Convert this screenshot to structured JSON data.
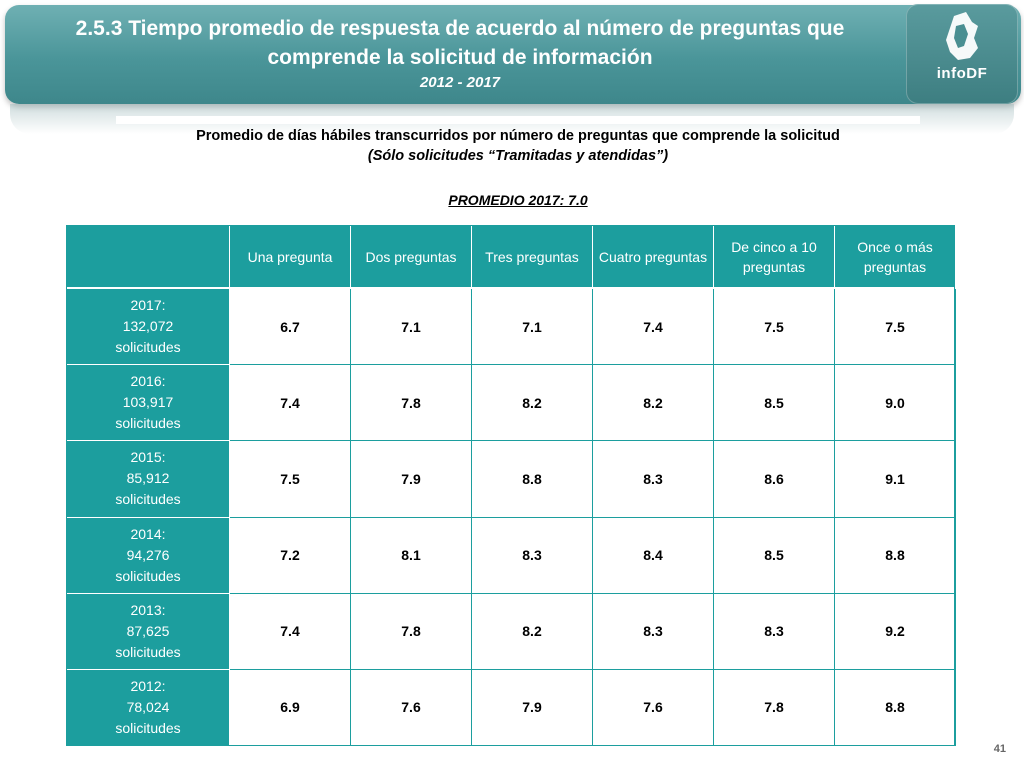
{
  "header": {
    "title": "2.5.3 Tiempo promedio de respuesta de acuerdo al número de preguntas que comprende la solicitud de información",
    "years": "2012 - 2017",
    "logo_text": "infoDF"
  },
  "subtitle": {
    "main": "Promedio de días hábiles transcurridos por número de preguntas que comprende la solicitud",
    "note": "(Sólo solicitudes “Tramitadas y atendidas”)"
  },
  "promedio": "PROMEDIO 2017: 7.0",
  "table": {
    "columns": [
      "",
      "Una pregunta",
      "Dos preguntas",
      "Tres preguntas",
      "Cuatro preguntas",
      "De cinco a 10 preguntas",
      "Once o más preguntas"
    ],
    "rows": [
      {
        "year": "2017:",
        "count": "132,072",
        "unit": "solicitudes",
        "values": [
          "6.7",
          "7.1",
          "7.1",
          "7.4",
          "7.5",
          "7.5"
        ]
      },
      {
        "year": "2016:",
        "count": "103,917",
        "unit": "solicitudes",
        "values": [
          "7.4",
          "7.8",
          "8.2",
          "8.2",
          "8.5",
          "9.0"
        ]
      },
      {
        "year": "2015:",
        "count": "85,912",
        "unit": "solicitudes",
        "values": [
          "7.5",
          "7.9",
          "8.8",
          "8.3",
          "8.6",
          "9.1"
        ]
      },
      {
        "year": "2014:",
        "count": "94,276",
        "unit": "solicitudes",
        "values": [
          "7.2",
          "8.1",
          "8.3",
          "8.4",
          "8.5",
          "8.8"
        ]
      },
      {
        "year": "2013:",
        "count": "87,625",
        "unit": "solicitudes",
        "values": [
          "7.4",
          "7.8",
          "8.2",
          "8.3",
          "8.3",
          "9.2"
        ]
      },
      {
        "year": "2012:",
        "count": "78,024",
        "unit": "solicitudes",
        "values": [
          "6.9",
          "7.6",
          "7.9",
          "7.6",
          "7.8",
          "8.8"
        ]
      }
    ]
  },
  "page_number": "41",
  "colors": {
    "banner": "#4a9599",
    "table_header": "#1c9e9e"
  }
}
